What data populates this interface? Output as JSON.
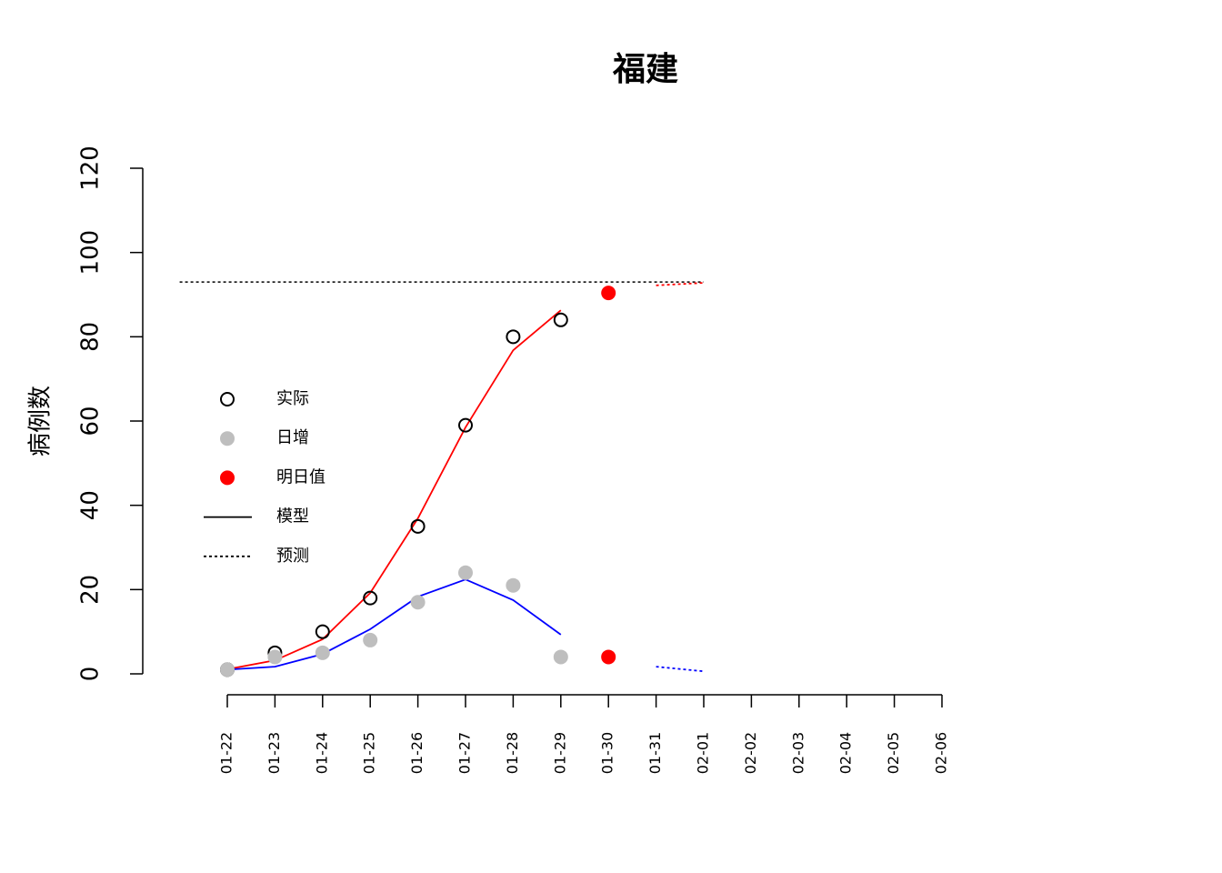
{
  "chart_data": {
    "type": "line",
    "title": "福建",
    "y_label": "病例数",
    "categories": [
      "01-22",
      "01-23",
      "01-24",
      "01-25",
      "01-26",
      "01-27",
      "01-28",
      "01-29",
      "01-30",
      "01-31",
      "02-01",
      "02-02",
      "02-03",
      "02-04",
      "02-05",
      "02-06"
    ],
    "ylim": [
      0,
      120
    ],
    "yticks": [
      0,
      20,
      40,
      60,
      80,
      100,
      120
    ],
    "asymptote": 93,
    "series": [
      {
        "style": "line",
        "color": "#ff0000",
        "values": [
          1.1,
          3.2,
          8.2,
          19.2,
          36.9,
          58.5,
          76.8,
          86.3,
          null,
          null,
          null,
          null,
          null,
          null,
          null,
          null
        ]
      },
      {
        "style": "line",
        "color": "#0000ff",
        "values": [
          1,
          1.7,
          4.7,
          10.6,
          18.3,
          22.4,
          17.5,
          9.3,
          null,
          null,
          null,
          null,
          null,
          null,
          null,
          null
        ]
      },
      {
        "style": "dotted",
        "color": "#ff0000",
        "values": [
          null,
          null,
          null,
          null,
          null,
          null,
          null,
          null,
          null,
          92.2,
          92.8,
          null,
          null,
          null,
          null,
          null
        ]
      },
      {
        "style": "dotted",
        "color": "#0000ff",
        "values": [
          null,
          null,
          null,
          null,
          null,
          null,
          null,
          null,
          null,
          1.7,
          0.6,
          null,
          null,
          null,
          null,
          null
        ]
      },
      {
        "style": "open",
        "color": "#000000",
        "values": [
          1,
          5,
          10,
          18,
          35,
          59,
          80,
          84,
          null,
          null,
          null,
          null,
          null,
          null,
          null,
          null
        ]
      },
      {
        "style": "filled",
        "color": "#bebebe",
        "values": [
          1,
          4,
          5,
          8,
          17,
          24,
          21,
          4,
          null,
          null,
          null,
          null,
          null,
          null,
          null,
          null
        ]
      },
      {
        "style": "filled",
        "color": "#ff0000",
        "values": [
          null,
          null,
          null,
          null,
          null,
          null,
          null,
          null,
          90.4,
          null,
          null,
          null,
          null,
          null,
          null,
          null
        ]
      },
      {
        "style": "filled",
        "color": "#ff0000",
        "values": [
          null,
          null,
          null,
          null,
          null,
          null,
          null,
          null,
          4,
          null,
          null,
          null,
          null,
          null,
          null,
          null
        ]
      }
    ],
    "legend": [
      {
        "label": "实际",
        "style": "open",
        "color": "#000000"
      },
      {
        "label": "日增",
        "style": "filled",
        "color": "#bebebe"
      },
      {
        "label": "明日值",
        "style": "filled",
        "color": "#ff0000"
      },
      {
        "label": "模型",
        "style": "line",
        "color": "#000000"
      },
      {
        "label": "预测",
        "style": "dotted",
        "color": "#000000"
      }
    ]
  }
}
